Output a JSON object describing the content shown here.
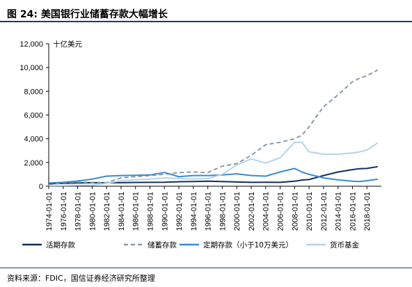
{
  "header": {
    "title": "图 24:  美国银行业储蓄存款大幅增长"
  },
  "footer": {
    "source": "资料来源：FDIC，国信证券经济研究所整理"
  },
  "chart_data": {
    "type": "line",
    "unit_label": "十亿美元",
    "ylim": [
      0,
      12000
    ],
    "yticks": [
      0,
      2000,
      4000,
      6000,
      8000,
      10000,
      12000
    ],
    "ytick_labels": [
      "0",
      "2,000",
      "4,000",
      "6,000",
      "8,000",
      "10,000",
      "12,000"
    ],
    "xlim": [
      1974,
      2020
    ],
    "x_tick_labels": [
      "1974-01-01",
      "1976-01-01",
      "1978-01-01",
      "1980-01-01",
      "1982-01-01",
      "1984-01-01",
      "1986-01-01",
      "1988-01-01",
      "1990-01-01",
      "1992-01-01",
      "1994-01-01",
      "1996-01-01",
      "1998-01-01",
      "2000-01-01",
      "2002-01-01",
      "2004-01-01",
      "2006-01-01",
      "2008-01-01",
      "2010-01-01",
      "2012-01-01",
      "2014-01-01",
      "2016-01-01",
      "2018-01-01"
    ],
    "x": [
      1974,
      1976,
      1978,
      1980,
      1982,
      1984,
      1986,
      1988,
      1990,
      1992,
      1994,
      1996,
      1998,
      2000,
      2002,
      2004,
      2006,
      2008,
      2009,
      2010,
      2012,
      2014,
      2016,
      2017,
      2018,
      2019.5
    ],
    "series": [
      {
        "name": "活期存款",
        "color": "#0f2f5f",
        "dash": false,
        "values": [
          220,
          250,
          280,
          300,
          290,
          300,
          320,
          330,
          340,
          380,
          400,
          420,
          400,
          360,
          330,
          340,
          330,
          420,
          520,
          560,
          900,
          1200,
          1400,
          1480,
          1500,
          1650
        ]
      },
      {
        "name": "储蓄存款",
        "color": "#8c99a8",
        "dash": true,
        "values": [
          100,
          300,
          350,
          320,
          300,
          700,
          800,
          900,
          1000,
          1150,
          1200,
          1150,
          1700,
          1900,
          2600,
          3500,
          3700,
          4000,
          4300,
          5000,
          6700,
          7700,
          8800,
          9100,
          9300,
          9800
        ]
      },
      {
        "name": "定期存款（小于10万美元）",
        "color": "#3a8ad1",
        "dash": false,
        "values": [
          280,
          330,
          440,
          600,
          850,
          900,
          920,
          950,
          1160,
          800,
          900,
          900,
          950,
          1050,
          900,
          850,
          1200,
          1500,
          1200,
          1000,
          700,
          530,
          420,
          400,
          470,
          590
        ]
      },
      {
        "name": "货币基金",
        "color": "#b5d3ea",
        "dash": false,
        "values": [
          50,
          60,
          80,
          100,
          250,
          450,
          550,
          600,
          700,
          650,
          600,
          650,
          1000,
          1800,
          2300,
          1950,
          2400,
          3700,
          3700,
          2900,
          2700,
          2700,
          2800,
          2900,
          3050,
          3650
        ]
      }
    ]
  }
}
